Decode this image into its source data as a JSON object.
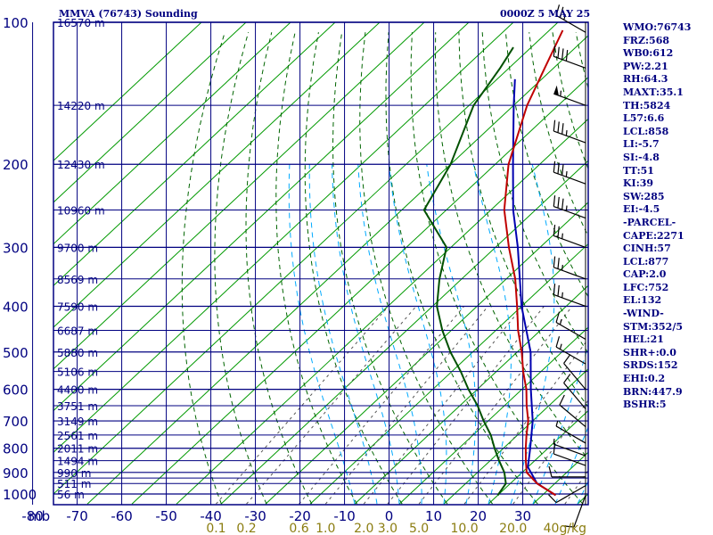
{
  "header": {
    "station": "MMVA (76743) Sounding",
    "time": "0000Z  5 MAY 25"
  },
  "indices": [
    "WMO:76743",
    "FRZ:568",
    "WB0:612",
    "PW:2.21",
    "RH:64.3",
    "MAXT:35.1",
    "TH:5824",
    "L57:6.6",
    "LCL:858",
    "LI:-5.7",
    "SI:-4.8",
    "TT:51",
    "KI:39",
    "SW:285",
    "EI:-4.5",
    "-PARCEL-",
    "CAPE:2271",
    "CINH:57",
    "LCL:877",
    "CAP:2.0",
    "LFC:752",
    "EL:132",
    "-WIND-",
    "STM:352/5",
    "HEL:21",
    "SHR+:0.0",
    "SRDS:152",
    "EHI:0.2",
    "BRN:447.9",
    "BSHR:5"
  ],
  "colors": {
    "grid": "#000080",
    "isotherm": "#009900",
    "dry_adiabat": "#006400",
    "moist_adiabat": "#00aaff",
    "mixing_ratio": "#555555",
    "temperature": "#c00000",
    "parcel": "#0000b0",
    "dewpoint": "#005000",
    "wind": "#000000"
  },
  "chart_data": {
    "type": "line",
    "title": "MMVA (76743) Sounding",
    "pressure_unit_label": "mb",
    "pressure_levels": [
      100,
      200,
      300,
      400,
      500,
      600,
      700,
      800,
      900,
      1000
    ],
    "intermediate_levels": [
      150,
      250,
      350,
      450,
      550,
      650,
      750,
      850,
      925,
      950
    ],
    "height_labels": [
      {
        "p": 100,
        "h": "16570 m"
      },
      {
        "p": 150,
        "h": "14220 m"
      },
      {
        "p": 200,
        "h": "12430 m"
      },
      {
        "p": 250,
        "h": "10960 m"
      },
      {
        "p": 300,
        "h": "9700 m"
      },
      {
        "p": 350,
        "h": "8569 m"
      },
      {
        "p": 400,
        "h": "7590 m"
      },
      {
        "p": 450,
        "h": "6687 m"
      },
      {
        "p": 500,
        "h": "5880 m"
      },
      {
        "p": 550,
        "h": "5106 m"
      },
      {
        "p": 600,
        "h": "4400 m"
      },
      {
        "p": 650,
        "h": "3751 m"
      },
      {
        "p": 700,
        "h": "3149 m"
      },
      {
        "p": 750,
        "h": "2561 m"
      },
      {
        "p": 800,
        "h": "2011 m"
      },
      {
        "p": 850,
        "h": "1494 m"
      },
      {
        "p": 900,
        "h": "990 m"
      },
      {
        "p": 950,
        "h": "511 m"
      },
      {
        "p": 1000,
        "h": "56 m"
      }
    ],
    "temperature_ticks": [
      -80,
      -70,
      -60,
      -50,
      -40,
      -30,
      -20,
      -10,
      0,
      10,
      20,
      30
    ],
    "temperature_tick_labels": [
      "-80",
      "-70",
      "-60",
      "-50",
      "-40",
      "-30",
      "-20",
      "-10",
      "0",
      "10",
      "20",
      "30"
    ],
    "mixing_ratio_labels": [
      "0.1",
      "0.2",
      "0.6",
      "1.0",
      "2.0",
      "3.0",
      "5.0",
      "10.0",
      "20.0",
      "40g/kg"
    ],
    "mixing_ratio_values": [
      0.1,
      0.2,
      0.6,
      1.0,
      2.0,
      3.0,
      5.0,
      10.0,
      20.0,
      40.0
    ],
    "temperature_profile": [
      {
        "p": 1006,
        "t": 33
      },
      {
        "p": 950,
        "t": 26
      },
      {
        "p": 900,
        "t": 21
      },
      {
        "p": 850,
        "t": 18
      },
      {
        "p": 800,
        "t": 15
      },
      {
        "p": 750,
        "t": 12
      },
      {
        "p": 700,
        "t": 9
      },
      {
        "p": 650,
        "t": 5
      },
      {
        "p": 600,
        "t": 1
      },
      {
        "p": 550,
        "t": -4
      },
      {
        "p": 500,
        "t": -9
      },
      {
        "p": 450,
        "t": -15
      },
      {
        "p": 400,
        "t": -21
      },
      {
        "p": 350,
        "t": -28
      },
      {
        "p": 300,
        "t": -37
      },
      {
        "p": 250,
        "t": -47
      },
      {
        "p": 200,
        "t": -57
      },
      {
        "p": 150,
        "t": -67
      },
      {
        "p": 125,
        "t": -72
      },
      {
        "p": 104,
        "t": -77
      }
    ],
    "dewpoint_profile": [
      {
        "p": 1006,
        "t": 20
      },
      {
        "p": 950,
        "t": 19
      },
      {
        "p": 900,
        "t": 16
      },
      {
        "p": 850,
        "t": 12
      },
      {
        "p": 800,
        "t": 8
      },
      {
        "p": 750,
        "t": 4
      },
      {
        "p": 700,
        "t": -1
      },
      {
        "p": 650,
        "t": -6
      },
      {
        "p": 600,
        "t": -12
      },
      {
        "p": 550,
        "t": -18
      },
      {
        "p": 500,
        "t": -25
      },
      {
        "p": 450,
        "t": -32
      },
      {
        "p": 400,
        "t": -39
      },
      {
        "p": 350,
        "t": -45
      },
      {
        "p": 300,
        "t": -51
      },
      {
        "p": 250,
        "t": -65
      },
      {
        "p": 200,
        "t": -70
      },
      {
        "p": 150,
        "t": -79
      },
      {
        "p": 125,
        "t": -82
      },
      {
        "p": 113,
        "t": -84
      }
    ],
    "parcel_profile": [
      {
        "p": 1006,
        "t": 33
      },
      {
        "p": 950,
        "t": 26
      },
      {
        "p": 877,
        "t": 20
      },
      {
        "p": 800,
        "t": 16
      },
      {
        "p": 700,
        "t": 10
      },
      {
        "p": 600,
        "t": 2
      },
      {
        "p": 500,
        "t": -7
      },
      {
        "p": 400,
        "t": -20
      },
      {
        "p": 300,
        "t": -35
      },
      {
        "p": 250,
        "t": -45
      },
      {
        "p": 200,
        "t": -56
      },
      {
        "p": 150,
        "t": -70
      },
      {
        "p": 132,
        "t": -76
      }
    ],
    "wind_barbs": [
      {
        "p": 1006,
        "dir": 200,
        "spd": 10
      },
      {
        "p": 960,
        "dir": 240,
        "spd": 10
      },
      {
        "p": 920,
        "dir": 270,
        "spd": 10
      },
      {
        "p": 870,
        "dir": 290,
        "spd": 10
      },
      {
        "p": 830,
        "dir": 290,
        "spd": 5
      },
      {
        "p": 780,
        "dir": 300,
        "spd": 5
      },
      {
        "p": 720,
        "dir": 310,
        "spd": 10
      },
      {
        "p": 660,
        "dir": 320,
        "spd": 10
      },
      {
        "p": 600,
        "dir": 320,
        "spd": 10
      },
      {
        "p": 530,
        "dir": 300,
        "spd": 15
      },
      {
        "p": 470,
        "dir": 300,
        "spd": 15
      },
      {
        "p": 400,
        "dir": 290,
        "spd": 25
      },
      {
        "p": 350,
        "dir": 290,
        "spd": 25
      },
      {
        "p": 300,
        "dir": 290,
        "spd": 25
      },
      {
        "p": 260,
        "dir": 290,
        "spd": 35
      },
      {
        "p": 220,
        "dir": 290,
        "spd": 35
      },
      {
        "p": 180,
        "dir": 290,
        "spd": 35
      },
      {
        "p": 150,
        "dir": 290,
        "spd": 55
      },
      {
        "p": 125,
        "dir": 290,
        "spd": 40
      },
      {
        "p": 105,
        "dir": 300,
        "spd": 25
      }
    ]
  }
}
